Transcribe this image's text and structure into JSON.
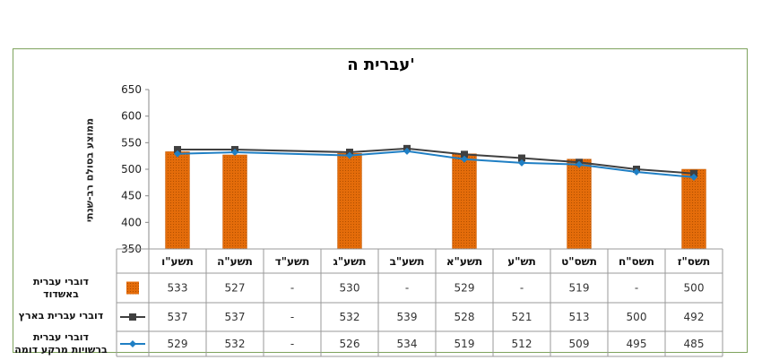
{
  "chart_data": {
    "type": "bar+line",
    "title": "עברית ה'",
    "ylabel": "ממוצע בסולם רב-שנתי",
    "ylim": [
      350,
      650
    ],
    "yticks": [
      350,
      400,
      450,
      500,
      550,
      600,
      650
    ],
    "grid": false,
    "categories": [
      "תשס\"ז",
      "תשס\"ח",
      "תשס\"ט",
      "תש\"ע",
      "תשע\"א",
      "תשע\"ב",
      "תשע\"ג",
      "תשע\"ד",
      "תשע\"ה",
      "תשע\"ו"
    ],
    "series": [
      {
        "name": "דוברי עברית באשדוד",
        "kind": "bar",
        "color": "#e46c0a",
        "values": [
          500,
          null,
          519,
          null,
          529,
          null,
          530,
          null,
          527,
          533
        ],
        "table_values": [
          "500",
          "-",
          "519",
          "-",
          "529",
          "-",
          "530",
          "-",
          "527",
          "533"
        ],
        "label_lines": [
          "דוברי עברית",
          "באשדוד"
        ]
      },
      {
        "name": "דוברי עברית בארץ",
        "kind": "line",
        "color": "#404040",
        "marker": "square",
        "values": [
          492,
          500,
          513,
          521,
          528,
          539,
          532,
          null,
          537,
          537
        ],
        "table_values": [
          "492",
          "500",
          "513",
          "521",
          "528",
          "539",
          "532",
          "-",
          "537",
          "537"
        ],
        "label_lines": [
          "דוברי עברית בארץ"
        ]
      },
      {
        "name": "דוברי עברית ברשויות מרקע דומה",
        "kind": "line",
        "color": "#1f7fc4",
        "marker": "diamond",
        "values": [
          485,
          495,
          509,
          512,
          519,
          534,
          526,
          null,
          532,
          529
        ],
        "table_values": [
          "485",
          "495",
          "509",
          "512",
          "519",
          "534",
          "526",
          "-",
          "532",
          "529"
        ],
        "label_lines": [
          "דוברי עברית",
          "ברשויות מרקע דומה"
        ]
      }
    ]
  }
}
